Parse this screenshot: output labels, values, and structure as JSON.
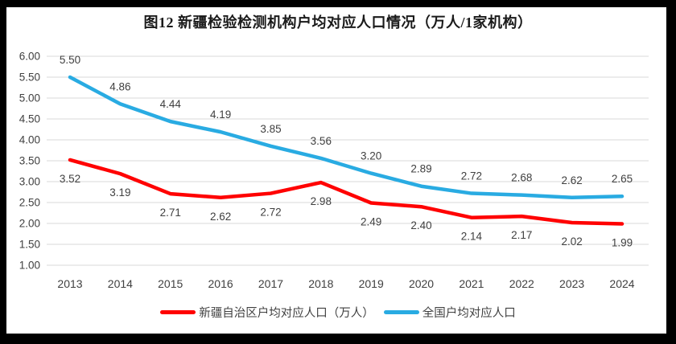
{
  "title": "图12 新疆检验检测机构户均对应人口情况（万人/1家机构）",
  "frame": {
    "border_color": "#000000",
    "background": "#ffffff"
  },
  "chart_data": {
    "type": "line",
    "title": "图12 新疆检验检测机构户均对应人口情况（万人/1家机构）",
    "categories": [
      "2013",
      "2014",
      "2015",
      "2016",
      "2017",
      "2018",
      "2019",
      "2020",
      "2021",
      "2022",
      "2023",
      "2024"
    ],
    "series": [
      {
        "id": "xinjiang",
        "name": "新疆自治区户均对应人口（万人）",
        "color": "#FF0000",
        "label_position": "below",
        "values": [
          3.52,
          3.19,
          2.71,
          2.62,
          2.72,
          2.98,
          2.49,
          2.4,
          2.14,
          2.17,
          2.02,
          1.99
        ]
      },
      {
        "id": "national",
        "name": "全国户均对应人口",
        "color": "#29ABE2",
        "label_position": "above",
        "values": [
          5.5,
          4.86,
          4.44,
          4.19,
          3.85,
          3.56,
          3.2,
          2.89,
          2.72,
          2.68,
          2.62,
          2.65
        ]
      }
    ],
    "ylim": [
      1.0,
      6.0
    ],
    "ytick_step": 0.5,
    "ytick_labels": [
      "6.00",
      "5.50",
      "5.00",
      "4.50",
      "4.00",
      "3.50",
      "3.00",
      "2.50",
      "2.00",
      "1.50",
      "1.00"
    ],
    "xlabel": "",
    "ylabel": "",
    "grid": true,
    "gridline_color": "#D9D9D9",
    "text_color": "#404040",
    "legend_position": "bottom"
  }
}
